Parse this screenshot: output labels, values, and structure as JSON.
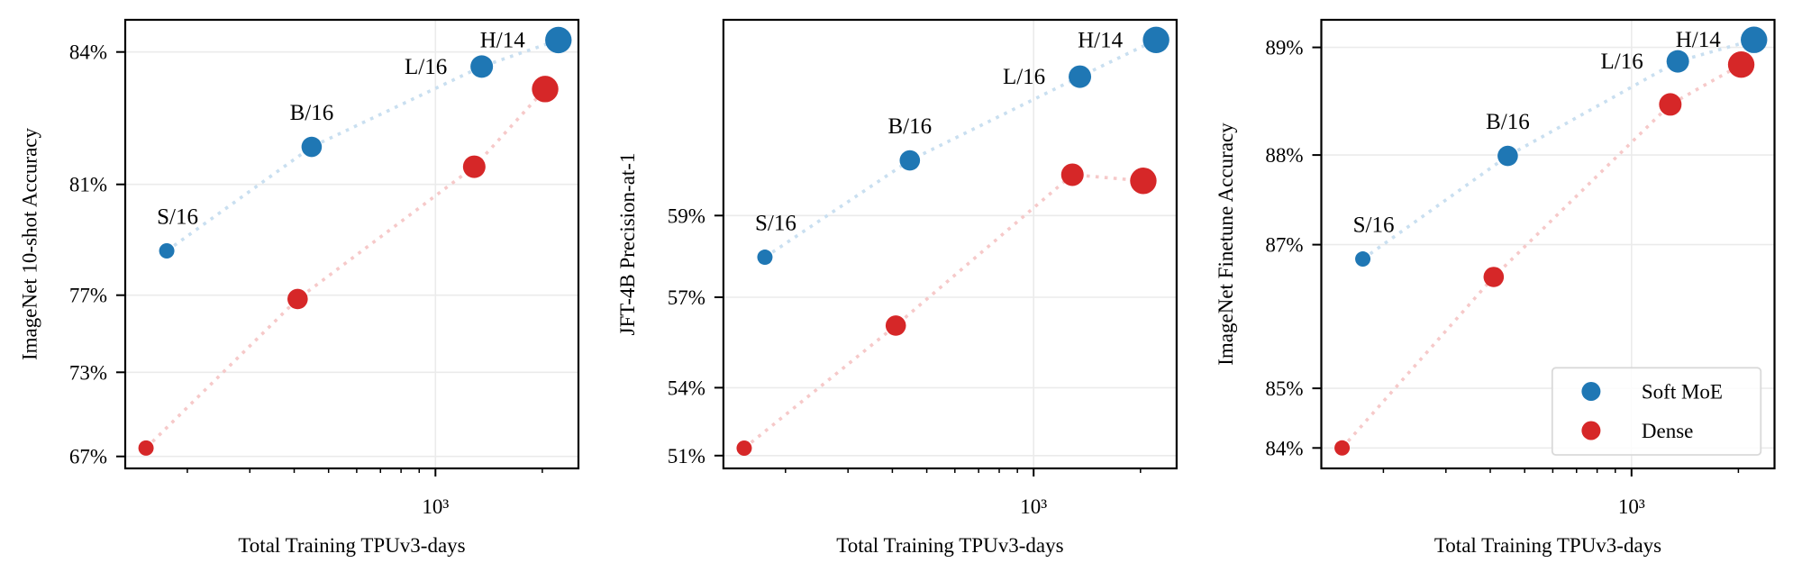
{
  "colors": {
    "soft_moe": "#1f77b4",
    "dense": "#d62728",
    "soft_moe_line": "#c9dff0",
    "dense_line": "#f6c9c9",
    "grid": "#ebebeb"
  },
  "chart_data": [
    {
      "type": "scatter",
      "xlabel": "Total Training TPUv3-days",
      "ylabel": "ImageNet 10-shot Accuracy",
      "xscale": "log",
      "xticks": [
        {
          "value": 1000,
          "label": "10³"
        }
      ],
      "xminor_ticks": [
        200,
        300,
        400,
        500,
        600,
        700,
        800,
        900,
        2000
      ],
      "yticks": [
        {
          "value": 84,
          "label": "84%"
        },
        {
          "value": 81,
          "label": "81%"
        },
        {
          "value": 77,
          "label": "77%"
        },
        {
          "value": 73,
          "label": "73%"
        },
        {
          "value": 67,
          "label": "67%"
        }
      ],
      "grid": true,
      "series": [
        {
          "key": "soft_moe",
          "points": [
            {
              "model": "S/16",
              "x": 175,
              "y": 78.6
            },
            {
              "model": "B/16",
              "x": 448,
              "y": 81.85
            },
            {
              "model": "L/16",
              "x": 1350,
              "y": 83.67
            },
            {
              "model": "H/14",
              "x": 2220,
              "y": 84.27
            }
          ]
        },
        {
          "key": "dense",
          "points": [
            {
              "x": 153,
              "y": 67.6
            },
            {
              "x": 409,
              "y": 76.8
            },
            {
              "x": 1286,
              "y": 81.4
            },
            {
              "x": 2037,
              "y": 83.16
            }
          ]
        }
      ]
    },
    {
      "type": "scatter",
      "xlabel": "Total Training TPUv3-days",
      "ylabel": "JFT-4B Precision-at-1",
      "xscale": "log",
      "xticks": [
        {
          "value": 1000,
          "label": "10³"
        }
      ],
      "xminor_ticks": [
        200,
        300,
        400,
        500,
        600,
        700,
        800,
        900,
        2000
      ],
      "yticks": [
        {
          "value": 59,
          "label": "59%"
        },
        {
          "value": 57,
          "label": "57%"
        },
        {
          "value": 54,
          "label": "54%"
        },
        {
          "value": 51,
          "label": "51%"
        }
      ],
      "grid": true,
      "series": [
        {
          "key": "soft_moe",
          "points": [
            {
              "model": "S/16",
              "x": 175,
              "y": 57.98
            },
            {
              "model": "B/16",
              "x": 448,
              "y": 60.35
            },
            {
              "model": "L/16",
              "x": 1350,
              "y": 62.4
            },
            {
              "model": "H/14",
              "x": 2213,
              "y": 63.3
            }
          ]
        },
        {
          "key": "dense",
          "points": [
            {
              "x": 153,
              "y": 51.33
            },
            {
              "x": 409,
              "y": 56.06
            },
            {
              "x": 1286,
              "y": 60.0
            },
            {
              "x": 2037,
              "y": 59.85
            }
          ]
        }
      ]
    },
    {
      "type": "scatter",
      "xlabel": "Total Training TPUv3-days",
      "ylabel": "ImageNet Finetune Accuracy",
      "xscale": "log",
      "xticks": [
        {
          "value": 1000,
          "label": "10³"
        }
      ],
      "xminor_ticks": [
        200,
        300,
        400,
        500,
        600,
        700,
        800,
        900,
        2000
      ],
      "yticks": [
        {
          "value": 89,
          "label": "89%"
        },
        {
          "value": 88,
          "label": "88%"
        },
        {
          "value": 87,
          "label": "87%"
        },
        {
          "value": 85,
          "label": "85%"
        },
        {
          "value": 84,
          "label": "84%"
        }
      ],
      "grid": true,
      "legend": {
        "placement": "lower-right",
        "entries": [
          {
            "key": "soft_moe",
            "name": "Soft MoE"
          },
          {
            "key": "dense",
            "name": "Dense"
          }
        ]
      },
      "series": [
        {
          "key": "soft_moe",
          "name": "Soft MoE",
          "points": [
            {
              "model": "S/16",
              "x": 175,
              "y": 86.8
            },
            {
              "model": "B/16",
              "x": 448,
              "y": 87.99
            },
            {
              "model": "L/16",
              "x": 1350,
              "y": 88.87
            },
            {
              "model": "H/14",
              "x": 2213,
              "y": 89.07
            }
          ]
        },
        {
          "key": "dense",
          "name": "Dense",
          "points": [
            {
              "x": 153,
              "y": 84.0
            },
            {
              "x": 409,
              "y": 86.55
            },
            {
              "x": 1286,
              "y": 88.47
            },
            {
              "x": 2037,
              "y": 88.84
            }
          ]
        }
      ]
    }
  ]
}
